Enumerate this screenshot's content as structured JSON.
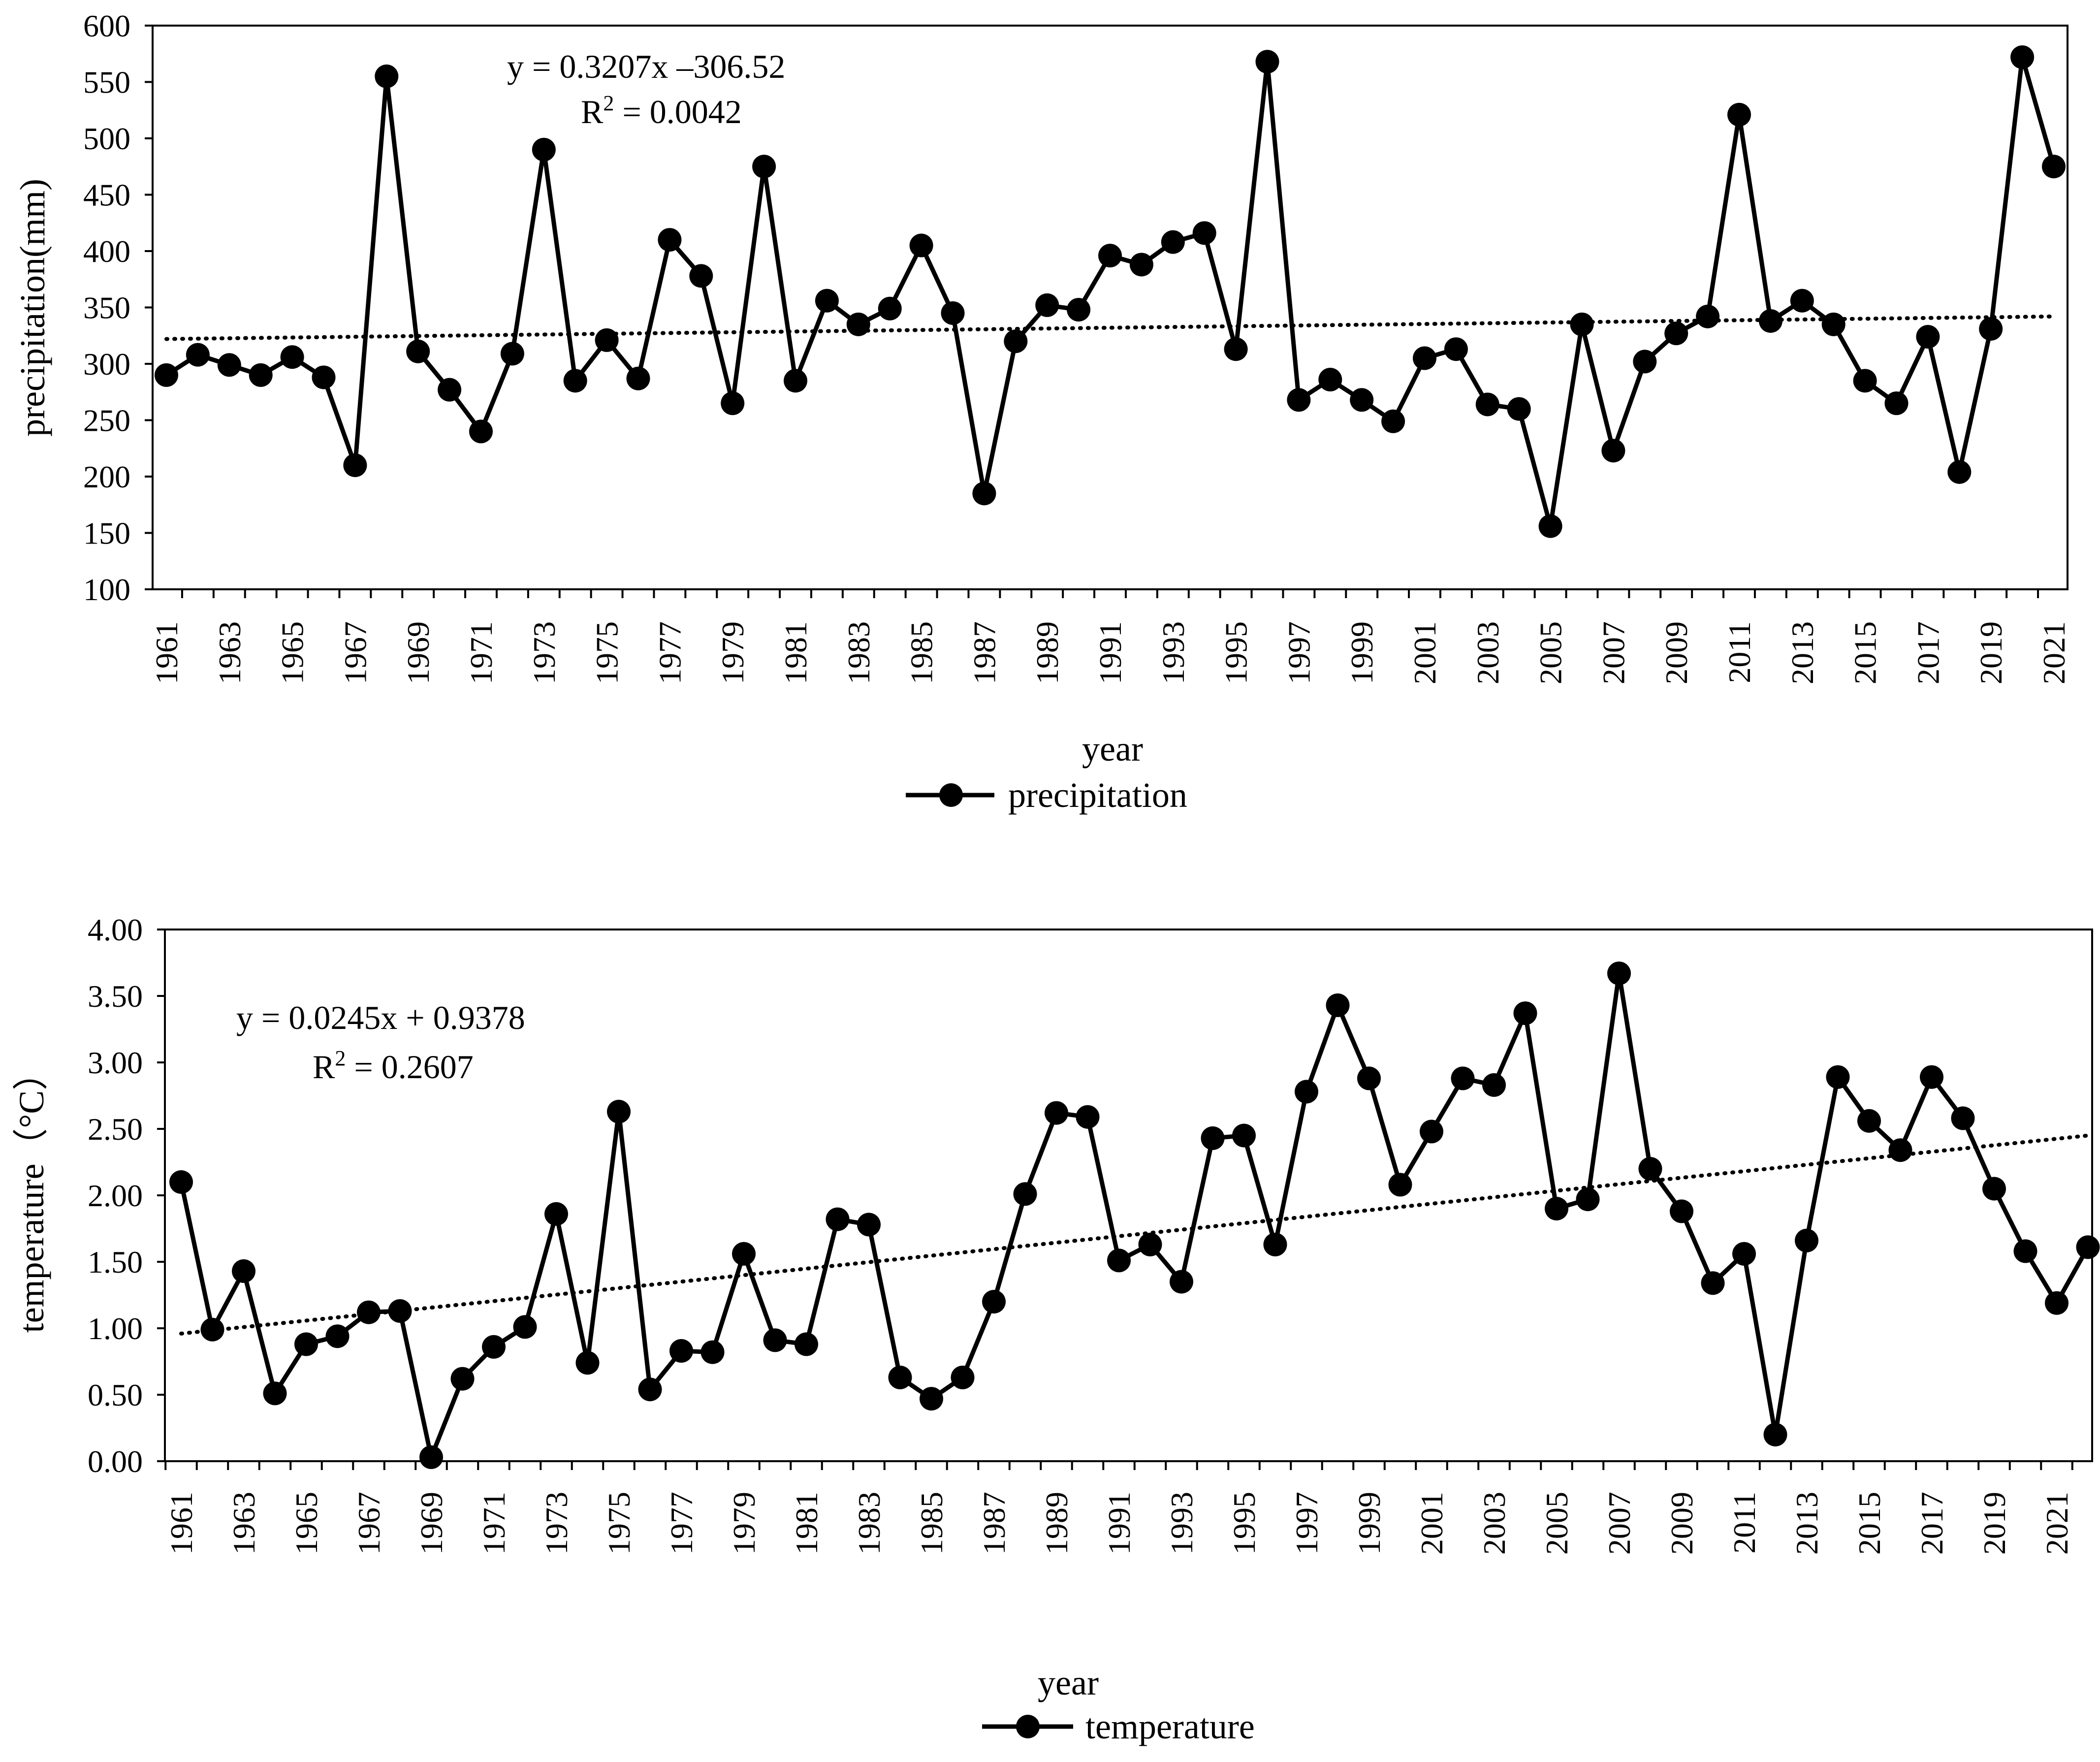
{
  "chart_data": [
    {
      "id": "precipitation-chart",
      "type": "line",
      "ylabel": "precipitation(mm)",
      "xlabel": "year",
      "ylim": [
        100,
        600
      ],
      "y_ticks": [
        100,
        150,
        200,
        250,
        300,
        350,
        400,
        450,
        500,
        550,
        600
      ],
      "x_tick_labels": [
        "1961",
        "1963",
        "1965",
        "1967",
        "1969",
        "1971",
        "1973",
        "1975",
        "1977",
        "1979",
        "1981",
        "1983",
        "1985",
        "1987",
        "1989",
        "1991",
        "1993",
        "1995",
        "1997",
        "1999",
        "2001",
        "2003",
        "2005",
        "2007",
        "2009",
        "2011",
        "2013",
        "2015",
        "2017",
        "2019",
        "2021"
      ],
      "legend": "precipitation",
      "legend_position": "bottom-center",
      "trendline": {
        "equation": "y = 0.3207x –306.52",
        "r2_label": "R",
        "r2_sup": "2",
        "r2_value": " = 0.0042",
        "start": 322,
        "end": 342
      },
      "series": [
        {
          "name": "precipitation",
          "years": [
            1961,
            1962,
            1963,
            1964,
            1965,
            1966,
            1967,
            1968,
            1969,
            1970,
            1971,
            1972,
            1973,
            1974,
            1975,
            1976,
            1977,
            1978,
            1979,
            1980,
            1981,
            1982,
            1983,
            1984,
            1985,
            1986,
            1987,
            1988,
            1989,
            1990,
            1991,
            1992,
            1993,
            1994,
            1995,
            1996,
            1997,
            1998,
            1999,
            2000,
            2001,
            2002,
            2003,
            2004,
            2005,
            2006,
            2007,
            2008,
            2009,
            2010,
            2011,
            2012,
            2013,
            2014,
            2015,
            2016,
            2017,
            2018,
            2019,
            2020,
            2021
          ],
          "values": [
            290,
            308,
            299,
            290,
            306,
            288,
            210,
            555,
            311,
            277,
            240,
            309,
            490,
            285,
            321,
            287,
            410,
            378,
            265,
            475,
            285,
            356,
            335,
            349,
            405,
            345,
            185,
            320,
            352,
            348,
            396,
            388,
            408,
            416,
            313,
            568,
            268,
            286,
            268,
            249,
            305,
            313,
            264,
            260,
            156,
            335,
            223,
            302,
            327,
            342,
            521,
            338,
            356,
            335,
            285,
            265,
            324,
            204,
            331,
            572,
            475
          ]
        }
      ]
    },
    {
      "id": "temperature-chart",
      "type": "line",
      "ylabel": "temperature（°C）",
      "xlabel": "year",
      "ylim": [
        0,
        4
      ],
      "y_ticks": [
        "0.00",
        "0.50",
        "1.00",
        "1.50",
        "2.00",
        "2.50",
        "3.00",
        "3.50",
        "4.00"
      ],
      "x_tick_labels": [
        "1961",
        "1963",
        "1965",
        "1967",
        "1969",
        "1971",
        "1973",
        "1975",
        "1977",
        "1979",
        "1981",
        "1983",
        "1985",
        "1987",
        "1989",
        "1991",
        "1993",
        "1995",
        "1997",
        "1999",
        "2001",
        "2003",
        "2005",
        "2007",
        "2009",
        "2011",
        "2013",
        "2015",
        "2017",
        "2019",
        "2021"
      ],
      "legend": "temperature",
      "legend_position": "bottom-center",
      "trendline": {
        "equation": "y = 0.0245x + 0.9378",
        "r2_label": "R",
        "r2_sup": "2",
        "r2_value": " = 0.2607",
        "start": 0.96,
        "end": 2.45
      },
      "series": [
        {
          "name": "temperature",
          "years": [
            1961,
            1962,
            1963,
            1964,
            1965,
            1966,
            1967,
            1968,
            1969,
            1970,
            1971,
            1972,
            1973,
            1974,
            1975,
            1976,
            1977,
            1978,
            1979,
            1980,
            1981,
            1982,
            1983,
            1984,
            1985,
            1986,
            1987,
            1988,
            1989,
            1990,
            1991,
            1992,
            1993,
            1994,
            1995,
            1996,
            1997,
            1998,
            1999,
            2000,
            2001,
            2002,
            2003,
            2004,
            2005,
            2006,
            2007,
            2008,
            2009,
            2010,
            2011,
            2012,
            2013,
            2014,
            2015,
            2016,
            2017,
            2018,
            2019,
            2020,
            2021,
            2022
          ],
          "values": [
            2.1,
            0.99,
            1.43,
            0.51,
            0.88,
            0.94,
            1.12,
            1.13,
            0.03,
            0.62,
            0.86,
            1.01,
            1.86,
            0.74,
            2.63,
            0.54,
            0.83,
            0.82,
            1.56,
            0.91,
            0.88,
            1.82,
            1.78,
            0.63,
            0.47,
            0.63,
            1.2,
            2.01,
            2.62,
            2.59,
            1.51,
            1.63,
            1.35,
            2.43,
            2.45,
            1.63,
            2.78,
            3.43,
            2.88,
            2.08,
            2.48,
            2.88,
            2.83,
            3.37,
            1.9,
            1.97,
            3.67,
            2.2,
            1.88,
            1.34,
            1.56,
            0.2,
            1.66,
            2.89,
            2.56,
            2.34,
            2.89,
            2.58,
            2.05,
            1.58,
            1.19,
            1.61
          ]
        }
      ]
    }
  ]
}
